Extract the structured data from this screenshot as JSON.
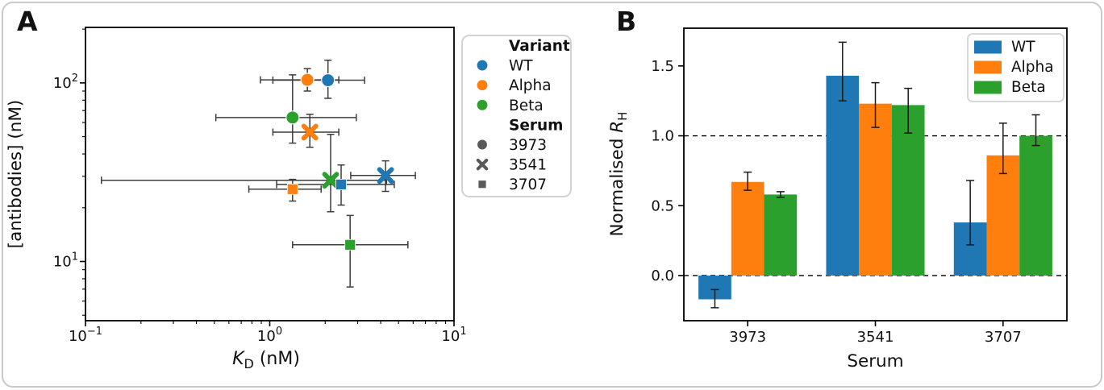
{
  "figure": {
    "background": "#ffffff",
    "card_border_color": "#c9c9c9"
  },
  "colors": {
    "wt": "#1f77b4",
    "alpha": "#ff7f0e",
    "beta": "#2ca02c",
    "serum_marker": "#595959",
    "error_bar_a": "#3d3d3d",
    "error_bar_b": "#1a1a1a",
    "axis": "#000000"
  },
  "panelA": {
    "letter": "A",
    "xlabel": {
      "symbol": "K",
      "subscript": "D",
      "unit": "(nM)"
    },
    "ylabel": "[antibodies] (nM)",
    "x_tick_labels": [
      {
        "base": "10",
        "exp": "−1"
      },
      {
        "base": "10",
        "exp": "0"
      },
      {
        "base": "10",
        "exp": "1"
      }
    ],
    "y_tick_labels": [
      {
        "base": "10",
        "exp": "1"
      },
      {
        "base": "10",
        "exp": "2"
      }
    ],
    "legend": {
      "variant_title": "Variant",
      "variant_items": [
        {
          "label": "WT",
          "color": "#1f77b4"
        },
        {
          "label": "Alpha",
          "color": "#ff7f0e"
        },
        {
          "label": "Beta",
          "color": "#2ca02c"
        }
      ],
      "serum_title": "Serum",
      "serum_items": [
        {
          "label": "3973",
          "marker": "circle"
        },
        {
          "label": "3541",
          "marker": "x"
        },
        {
          "label": "3707",
          "marker": "square"
        }
      ]
    }
  },
  "panelB": {
    "letter": "B",
    "xlabel": "Serum",
    "ylabel": {
      "prefix": "Normalised ",
      "symbol": "R",
      "subscript": "H"
    },
    "y_tick_labels": [
      "0.0",
      "0.5",
      "1.0",
      "1.5"
    ],
    "x_tick_labels": [
      "3973",
      "3541",
      "3707"
    ],
    "legend_items": [
      "WT",
      "Alpha",
      "Beta"
    ]
  },
  "chart_data": [
    {
      "type": "scatter",
      "title": "Panel A: antibody concentration vs binding affinity",
      "xlabel": "K_D (nM)",
      "ylabel": "[antibodies] (nM)",
      "xscale": "log",
      "yscale": "log",
      "xlim": [
        0.1,
        10
      ],
      "ylim": [
        4.66,
        204.5
      ],
      "legend_position": "outside right top",
      "grid": false,
      "points": [
        {
          "variant": "WT",
          "serum": "3973",
          "marker": "circle",
          "x": 2.07,
          "y": 103.5,
          "x_err": [
            1.04,
            3.27
          ],
          "y_err": [
            82,
            134
          ]
        },
        {
          "variant": "Alpha",
          "serum": "3973",
          "marker": "circle",
          "x": 1.6,
          "y": 104,
          "x_err": [
            0.89,
            2.37
          ],
          "y_err": [
            90,
            120
          ]
        },
        {
          "variant": "Beta",
          "serum": "3973",
          "marker": "circle",
          "x": 1.33,
          "y": 64,
          "x_err": [
            0.51,
            2.95
          ],
          "y_err": [
            46,
            111
          ]
        },
        {
          "variant": "WT",
          "serum": "3541",
          "marker": "x",
          "x": 4.25,
          "y": 30.3,
          "x_err": [
            2.75,
            6.17
          ],
          "y_err": [
            24.7,
            36.6
          ]
        },
        {
          "variant": "Alpha",
          "serum": "3541",
          "marker": "x",
          "x": 1.65,
          "y": 53,
          "x_err": [
            1.04,
            2.37
          ],
          "y_err": [
            43.6,
            66.7
          ]
        },
        {
          "variant": "Beta",
          "serum": "3541",
          "marker": "x",
          "x": 2.14,
          "y": 28.5,
          "x_err": [
            0.122,
            4.3
          ],
          "y_err": [
            19,
            51.5
          ]
        },
        {
          "variant": "WT",
          "serum": "3707",
          "marker": "square",
          "x": 2.44,
          "y": 27,
          "x_err": [
            1.09,
            4.74
          ],
          "y_err": [
            20.7,
            34.7
          ]
        },
        {
          "variant": "Alpha",
          "serum": "3707",
          "marker": "square",
          "x": 1.33,
          "y": 25.4,
          "x_err": [
            0.77,
            1.9
          ],
          "y_err": [
            21.8,
            28.8
          ]
        },
        {
          "variant": "Beta",
          "serum": "3707",
          "marker": "square",
          "x": 2.73,
          "y": 12.4,
          "x_err": [
            1.33,
            5.62
          ],
          "y_err": [
            7.2,
            18.1
          ]
        }
      ]
    },
    {
      "type": "bar",
      "title": "Panel B: normalised hydrodynamic radius by serum",
      "categories": [
        "3973",
        "3541",
        "3707"
      ],
      "xlabel": "Serum",
      "ylabel": "Normalised R_H",
      "ylim": [
        -0.323,
        1.77
      ],
      "y_ticks": [
        0.0,
        0.5,
        1.0,
        1.5
      ],
      "reference_lines": [
        0.0,
        1.0
      ],
      "legend_position": "upper right",
      "grid": false,
      "series": [
        {
          "name": "WT",
          "color": "#1f77b4",
          "values": [
            -0.17,
            1.43,
            0.38
          ],
          "err_low": [
            -0.23,
            1.25,
            0.22
          ],
          "err_high": [
            -0.1,
            1.67,
            0.68
          ]
        },
        {
          "name": "Alpha",
          "color": "#ff7f0e",
          "values": [
            0.67,
            1.23,
            0.86
          ],
          "err_low": [
            0.61,
            1.06,
            0.73
          ],
          "err_high": [
            0.74,
            1.38,
            1.09
          ]
        },
        {
          "name": "Beta",
          "color": "#2ca02c",
          "values": [
            0.58,
            1.22,
            1.0
          ],
          "err_low": [
            0.56,
            1.02,
            0.93
          ],
          "err_high": [
            0.6,
            1.34,
            1.15
          ]
        }
      ]
    }
  ]
}
